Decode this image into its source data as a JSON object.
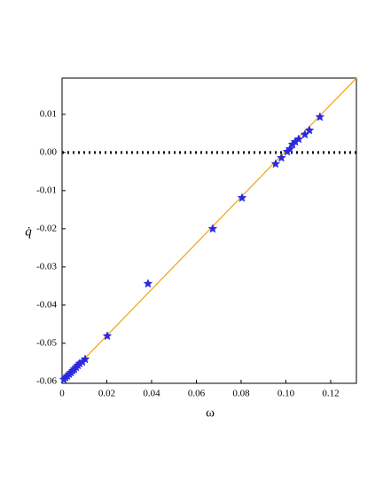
{
  "chart_data": {
    "type": "scatter",
    "xlabel": "ω",
    "ylabel": "q̇",
    "xlim": [
      0,
      0.1315
    ],
    "ylim": [
      -0.0605,
      0.0195
    ],
    "xticks": [
      0,
      0.02,
      0.04,
      0.06,
      0.08,
      {
        "value": 0.1,
        "label": "0.10"
      },
      0.12
    ],
    "yticks": [
      0.01,
      {
        "value": 0,
        "label": "0.00"
      },
      -0.01,
      -0.02,
      -0.03,
      -0.04,
      -0.05,
      -0.06
    ],
    "hline": {
      "y": 0,
      "color": "#000000",
      "style": "dotted"
    },
    "fit_line": {
      "x": [
        0,
        0.1315
      ],
      "y": [
        -0.0601,
        0.0195
      ],
      "color": "#f5a623"
    },
    "points": {
      "color": "#2a2ae0",
      "marker": "star",
      "x": [
        0.0008,
        0.0016,
        0.0024,
        0.0032,
        0.004,
        0.0048,
        0.0055,
        0.0063,
        0.0071,
        0.0079,
        0.0091,
        0.0103,
        0.0202,
        0.0384,
        0.0673,
        0.0804,
        0.0954,
        0.098,
        0.1006,
        0.1018,
        0.103,
        0.1042,
        0.1057,
        0.1085,
        0.1105,
        0.1152
      ],
      "y": [
        -0.0595,
        -0.059,
        -0.0586,
        -0.0581,
        -0.0577,
        -0.0572,
        -0.0568,
        -0.0563,
        -0.0558,
        -0.0553,
        -0.0549,
        -0.0542,
        -0.0481,
        -0.0344,
        -0.02,
        -0.0119,
        -0.003,
        -0.0014,
        0.0002,
        0.0009,
        0.0021,
        0.0028,
        0.0035,
        0.0047,
        0.0058,
        0.0093
      ]
    }
  }
}
